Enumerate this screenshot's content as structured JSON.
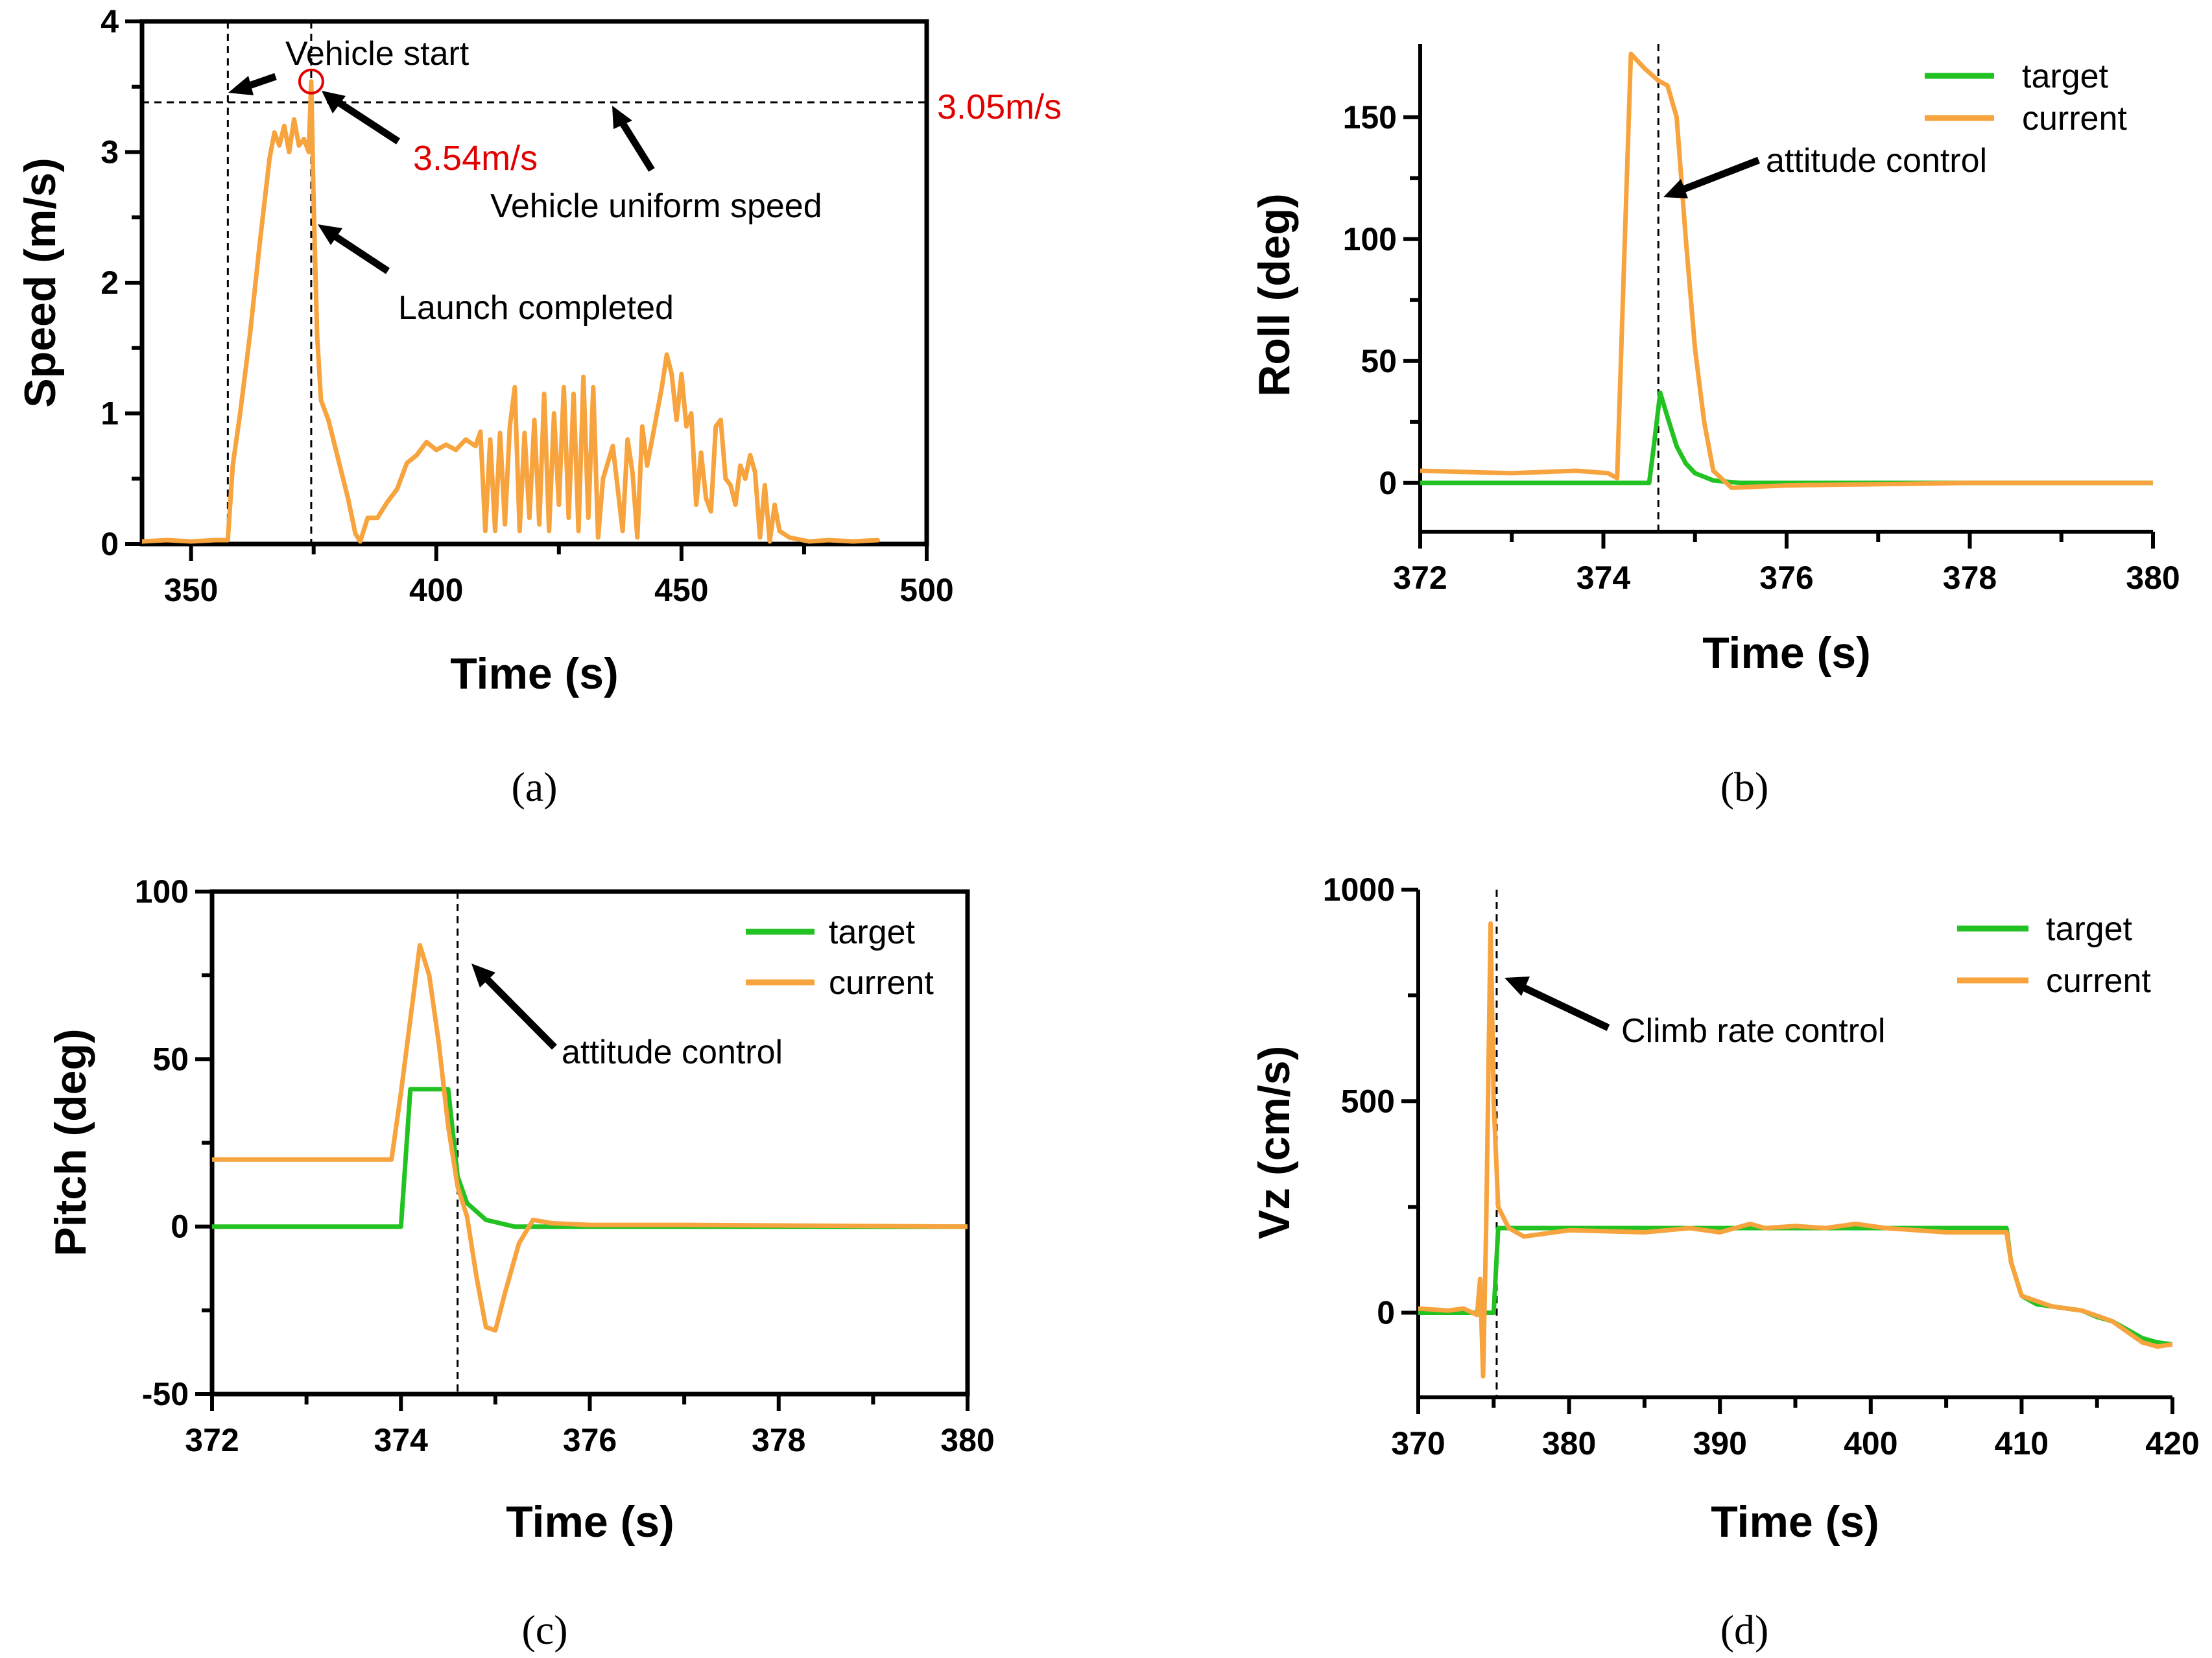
{
  "colors": {
    "current": "#f7a33e",
    "target": "#23c223",
    "highlight": "#e00000"
  },
  "chart_data": [
    {
      "id": "a",
      "type": "line",
      "panel_label": "(a)",
      "xlabel": "Time (s)",
      "ylabel": "Speed (m/s)",
      "xlim": [
        340,
        500
      ],
      "ylim": [
        0,
        4
      ],
      "xticks": [
        350,
        400,
        450,
        500
      ],
      "yticks": [
        0,
        1,
        2,
        3,
        4
      ],
      "series": [
        {
          "name": "current",
          "color": "current",
          "points": [
            [
              340,
              0.02
            ],
            [
              345,
              0.03
            ],
            [
              350,
              0.02
            ],
            [
              355,
              0.03
            ],
            [
              357.5,
              0.03
            ],
            [
              358.5,
              0.6
            ],
            [
              360,
              1.0
            ],
            [
              362,
              1.6
            ],
            [
              364,
              2.3
            ],
            [
              366,
              2.95
            ],
            [
              367,
              3.15
            ],
            [
              368,
              3.05
            ],
            [
              369,
              3.2
            ],
            [
              370,
              3.0
            ],
            [
              371,
              3.25
            ],
            [
              372,
              3.05
            ],
            [
              373,
              3.1
            ],
            [
              374,
              3.0
            ],
            [
              374.5,
              3.54
            ],
            [
              375,
              2.6
            ],
            [
              375.7,
              1.6
            ],
            [
              376.5,
              1.1
            ],
            [
              378,
              0.95
            ],
            [
              380,
              0.65
            ],
            [
              382,
              0.35
            ],
            [
              383.5,
              0.08
            ],
            [
              384.5,
              0.02
            ],
            [
              386,
              0.2
            ],
            [
              388,
              0.2
            ],
            [
              390,
              0.32
            ],
            [
              392,
              0.42
            ],
            [
              394,
              0.62
            ],
            [
              396,
              0.68
            ],
            [
              398,
              0.78
            ],
            [
              400,
              0.72
            ],
            [
              402,
              0.76
            ],
            [
              404,
              0.72
            ],
            [
              406,
              0.8
            ],
            [
              408,
              0.75
            ],
            [
              409,
              0.86
            ],
            [
              410,
              0.1
            ],
            [
              411,
              0.8
            ],
            [
              412,
              0.1
            ],
            [
              413,
              0.85
            ],
            [
              414,
              0.15
            ],
            [
              415,
              0.9
            ],
            [
              416,
              1.2
            ],
            [
              417,
              0.1
            ],
            [
              418,
              0.85
            ],
            [
              419,
              0.2
            ],
            [
              420,
              0.95
            ],
            [
              421,
              0.15
            ],
            [
              422,
              1.15
            ],
            [
              423,
              0.1
            ],
            [
              424,
              1.0
            ],
            [
              425,
              0.3
            ],
            [
              426,
              1.2
            ],
            [
              427,
              0.2
            ],
            [
              428,
              1.15
            ],
            [
              429,
              0.1
            ],
            [
              430,
              1.28
            ],
            [
              431,
              0.2
            ],
            [
              432,
              1.2
            ],
            [
              433,
              0.05
            ],
            [
              434,
              0.5
            ],
            [
              436,
              0.75
            ],
            [
              438,
              0.1
            ],
            [
              439,
              0.8
            ],
            [
              440,
              0.55
            ],
            [
              441,
              0.05
            ],
            [
              442,
              0.9
            ],
            [
              443,
              0.6
            ],
            [
              444,
              0.8
            ],
            [
              446,
              1.2
            ],
            [
              447,
              1.45
            ],
            [
              448,
              1.3
            ],
            [
              449,
              0.95
            ],
            [
              450,
              1.3
            ],
            [
              451,
              0.9
            ],
            [
              452,
              1.0
            ],
            [
              453,
              0.3
            ],
            [
              454,
              0.7
            ],
            [
              455,
              0.35
            ],
            [
              456,
              0.25
            ],
            [
              457,
              0.9
            ],
            [
              458,
              0.95
            ],
            [
              459,
              0.5
            ],
            [
              460,
              0.45
            ],
            [
              461,
              0.3
            ],
            [
              462,
              0.6
            ],
            [
              463,
              0.5
            ],
            [
              464,
              0.68
            ],
            [
              465,
              0.55
            ],
            [
              466,
              0.05
            ],
            [
              467,
              0.45
            ],
            [
              468,
              0.02
            ],
            [
              469,
              0.3
            ],
            [
              470,
              0.1
            ],
            [
              472,
              0.05
            ],
            [
              476,
              0.02
            ],
            [
              480,
              0.03
            ],
            [
              485,
              0.02
            ],
            [
              490,
              0.03
            ]
          ]
        }
      ],
      "vlines": [
        357.5,
        374.5
      ],
      "hline": 3.38,
      "marker": {
        "x": 374.5,
        "y": 3.54
      },
      "annotations": {
        "vehicle_start": "Vehicle start",
        "max_speed": "3.54m/s",
        "uniform_speed_value": "3.05m/s",
        "uniform_speed": "Vehicle uniform speed",
        "launch_completed": "Launch completed"
      }
    },
    {
      "id": "b",
      "type": "line",
      "panel_label": "(b)",
      "xlabel": "Time (s)",
      "ylabel": "Roll (deg)",
      "xlim": [
        372,
        380
      ],
      "ylim": [
        -20,
        180
      ],
      "xticks": [
        372,
        374,
        376,
        378,
        380
      ],
      "yticks": [
        0,
        50,
        100,
        150
      ],
      "legend": [
        "target",
        "current"
      ],
      "series": [
        {
          "name": "target",
          "color": "target",
          "points": [
            [
              372,
              0
            ],
            [
              374.5,
              0
            ],
            [
              374.55,
              15
            ],
            [
              374.62,
              37
            ],
            [
              374.7,
              27
            ],
            [
              374.8,
              15
            ],
            [
              374.9,
              8
            ],
            [
              375.0,
              4
            ],
            [
              375.2,
              1
            ],
            [
              375.5,
              0
            ],
            [
              380,
              0
            ]
          ]
        },
        {
          "name": "current",
          "color": "current",
          "points": [
            [
              372,
              5
            ],
            [
              373,
              4
            ],
            [
              373.7,
              5
            ],
            [
              374.05,
              4
            ],
            [
              374.15,
              2
            ],
            [
              374.2,
              60
            ],
            [
              374.3,
              176
            ],
            [
              374.45,
              170
            ],
            [
              374.6,
              165
            ],
            [
              374.7,
              163
            ],
            [
              374.8,
              150
            ],
            [
              374.9,
              100
            ],
            [
              375.0,
              55
            ],
            [
              375.1,
              25
            ],
            [
              375.2,
              5
            ],
            [
              375.4,
              -2
            ],
            [
              376,
              -1
            ],
            [
              378,
              0
            ],
            [
              380,
              0
            ]
          ]
        }
      ],
      "vlines": [
        374.6
      ],
      "annotations": {
        "attitude_control": "attitude control"
      }
    },
    {
      "id": "c",
      "type": "line",
      "panel_label": "(c)",
      "xlabel": "Time (s)",
      "ylabel": "Pitch (deg)",
      "xlim": [
        372,
        380
      ],
      "ylim": [
        -50,
        100
      ],
      "xticks": [
        372,
        374,
        376,
        378,
        380
      ],
      "yticks": [
        -50,
        0,
        50,
        100
      ],
      "legend": [
        "target",
        "current"
      ],
      "series": [
        {
          "name": "target",
          "color": "target",
          "points": [
            [
              372,
              0
            ],
            [
              374,
              0
            ],
            [
              374.1,
              41
            ],
            [
              374.5,
              41
            ],
            [
              374.6,
              15
            ],
            [
              374.7,
              7
            ],
            [
              374.9,
              2
            ],
            [
              375.2,
              0
            ],
            [
              380,
              0
            ]
          ]
        },
        {
          "name": "current",
          "color": "current",
          "points": [
            [
              372,
              20
            ],
            [
              373,
              20
            ],
            [
              373.9,
              20
            ],
            [
              374.0,
              40
            ],
            [
              374.2,
              84
            ],
            [
              374.3,
              75
            ],
            [
              374.4,
              55
            ],
            [
              374.5,
              30
            ],
            [
              374.6,
              12
            ],
            [
              374.7,
              3
            ],
            [
              374.8,
              -15
            ],
            [
              374.9,
              -30
            ],
            [
              375.0,
              -31
            ],
            [
              375.1,
              -20
            ],
            [
              375.25,
              -5
            ],
            [
              375.4,
              2
            ],
            [
              375.6,
              1
            ],
            [
              376,
              0.5
            ],
            [
              377,
              0.5
            ],
            [
              380,
              0
            ]
          ]
        }
      ],
      "vlines": [
        374.6
      ],
      "annotations": {
        "attitude_control": "attitude control"
      }
    },
    {
      "id": "d",
      "type": "line",
      "panel_label": "(d)",
      "xlabel": "Time (s)",
      "ylabel": "Vz (cm/s)",
      "xlim": [
        370,
        420
      ],
      "ylim": [
        -200,
        1000
      ],
      "xticks": [
        370,
        380,
        390,
        400,
        410,
        420
      ],
      "yticks": [
        0,
        500,
        1000
      ],
      "legend": [
        "target",
        "current"
      ],
      "series": [
        {
          "name": "target",
          "color": "target",
          "points": [
            [
              370,
              0
            ],
            [
              375,
              0
            ],
            [
              375.3,
              200
            ],
            [
              380,
              200
            ],
            [
              390,
              200
            ],
            [
              400,
              200
            ],
            [
              409,
              200
            ],
            [
              409.3,
              120
            ],
            [
              410,
              40
            ],
            [
              411,
              20
            ],
            [
              412,
              15
            ],
            [
              413,
              10
            ],
            [
              414,
              5
            ],
            [
              415,
              -10
            ],
            [
              416,
              -20
            ],
            [
              417,
              -40
            ],
            [
              418,
              -60
            ],
            [
              419,
              -70
            ],
            [
              420,
              -75
            ]
          ]
        },
        {
          "name": "current",
          "color": "current",
          "points": [
            [
              370,
              10
            ],
            [
              372,
              5
            ],
            [
              373,
              10
            ],
            [
              373.9,
              -5
            ],
            [
              374.1,
              80
            ],
            [
              374.3,
              -150
            ],
            [
              374.5,
              200
            ],
            [
              374.8,
              920
            ],
            [
              375.0,
              500
            ],
            [
              375.3,
              250
            ],
            [
              376,
              200
            ],
            [
              377,
              180
            ],
            [
              380,
              195
            ],
            [
              385,
              190
            ],
            [
              388,
              200
            ],
            [
              390,
              190
            ],
            [
              392,
              210
            ],
            [
              393,
              200
            ],
            [
              395,
              205
            ],
            [
              397,
              200
            ],
            [
              399,
              210
            ],
            [
              401,
              200
            ],
            [
              403,
              195
            ],
            [
              405,
              190
            ],
            [
              409,
              190
            ],
            [
              409.3,
              120
            ],
            [
              410,
              40
            ],
            [
              412,
              15
            ],
            [
              414,
              5
            ],
            [
              416,
              -20
            ],
            [
              418,
              -70
            ],
            [
              419,
              -80
            ],
            [
              420,
              -75
            ]
          ]
        }
      ],
      "vlines": [
        375.2
      ],
      "annotations": {
        "climb_rate_control": "Climb rate control"
      }
    }
  ]
}
